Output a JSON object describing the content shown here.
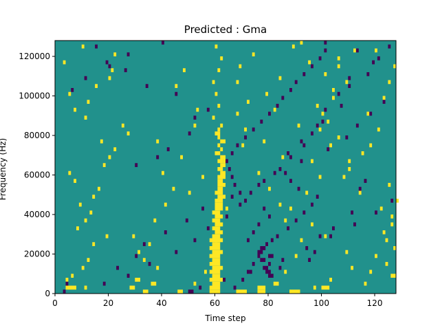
{
  "chart_data": {
    "type": "heatmap",
    "title": "Predicted : Gma",
    "xlabel": "Time step",
    "ylabel": "Frequency (Hz)",
    "xlim": [
      0,
      128
    ],
    "ylim": [
      0,
      128000
    ],
    "x_ticks": [
      0,
      20,
      40,
      60,
      80,
      100,
      120
    ],
    "y_ticks": [
      0,
      20000,
      40000,
      60000,
      80000,
      100000,
      120000
    ],
    "x_tick_labels": [
      "0",
      "20",
      "40",
      "60",
      "80",
      "100",
      "120"
    ],
    "y_tick_labels": [
      "0",
      "20000",
      "40000",
      "60000",
      "80000",
      "100000",
      "120000"
    ],
    "colormap": "viridis",
    "colors": {
      "background": "#21918c",
      "high": "#fde725",
      "low": "#440154"
    },
    "n_rows": 64,
    "n_cols": 128,
    "cells_high": [
      [
        1,
        4,
        8
      ],
      [
        3,
        4,
        5
      ],
      [
        4,
        6,
        7
      ],
      [
        6,
        10,
        11
      ],
      [
        8,
        12,
        13
      ],
      [
        12,
        14,
        15
      ],
      [
        14,
        19,
        20
      ],
      [
        16,
        8,
        9
      ],
      [
        18,
        11,
        12
      ],
      [
        20,
        13,
        14
      ],
      [
        22,
        9,
        10
      ],
      [
        24,
        14,
        15
      ],
      [
        26,
        16,
        17
      ],
      [
        28,
        7,
        8
      ],
      [
        30,
        5,
        6
      ],
      [
        32,
        18,
        19
      ],
      [
        34,
        20,
        21
      ],
      [
        36,
        22,
        23
      ],
      [
        38,
        17,
        18
      ],
      [
        40,
        27,
        28
      ],
      [
        42,
        25,
        26
      ],
      [
        44,
        11,
        12
      ],
      [
        46,
        7,
        8
      ],
      [
        48,
        12,
        13
      ],
      [
        50,
        5,
        6
      ],
      [
        52,
        15,
        16
      ],
      [
        54,
        20,
        21
      ],
      [
        56,
        21,
        22
      ],
      [
        58,
        3,
        4
      ],
      [
        60,
        22,
        23
      ],
      [
        62,
        10,
        11
      ],
      [
        1,
        28,
        30
      ],
      [
        3,
        30,
        32
      ],
      [
        2,
        36,
        38
      ],
      [
        6,
        38,
        39
      ],
      [
        8,
        33,
        34
      ],
      [
        10,
        31,
        32
      ],
      [
        12,
        35,
        36
      ],
      [
        14,
        29,
        30
      ],
      [
        18,
        37,
        38
      ],
      [
        22,
        41,
        42
      ],
      [
        26,
        44,
        45
      ],
      [
        30,
        40,
        41
      ],
      [
        34,
        47,
        48
      ],
      [
        38,
        38,
        39
      ],
      [
        42,
        52,
        53
      ],
      [
        46,
        53,
        54
      ],
      [
        52,
        45,
        46
      ],
      [
        56,
        48,
        49
      ],
      [
        2,
        52,
        53
      ],
      [
        5,
        56,
        57
      ],
      [
        9,
        58,
        59
      ],
      [
        13,
        60,
        61
      ],
      [
        17,
        62,
        63
      ],
      [
        21,
        64,
        65
      ],
      [
        25,
        50,
        51
      ],
      [
        29,
        55,
        56
      ],
      [
        33,
        63,
        64
      ],
      [
        37,
        70,
        71
      ],
      [
        41,
        71,
        72
      ],
      [
        45,
        68,
        69
      ],
      [
        48,
        72,
        73
      ],
      [
        53,
        68,
        69
      ],
      [
        57,
        69,
        70
      ],
      [
        60,
        74,
        75
      ],
      [
        0,
        68,
        72
      ],
      [
        0,
        76,
        79
      ],
      [
        2,
        82,
        84
      ],
      [
        5,
        86,
        87
      ],
      [
        9,
        90,
        91
      ],
      [
        13,
        92,
        93
      ],
      [
        17,
        96,
        97
      ],
      [
        21,
        88,
        89
      ],
      [
        25,
        94,
        95
      ],
      [
        29,
        99,
        100
      ],
      [
        33,
        96,
        97
      ],
      [
        37,
        103,
        104
      ],
      [
        41,
        99,
        100
      ],
      [
        45,
        100,
        101
      ],
      [
        49,
        104,
        105
      ],
      [
        53,
        109,
        110
      ],
      [
        57,
        106,
        107
      ],
      [
        61,
        112,
        113
      ],
      [
        2,
        116,
        117
      ],
      [
        5,
        118,
        119
      ],
      [
        9,
        120,
        121
      ],
      [
        13,
        124,
        125
      ],
      [
        17,
        126,
        127
      ],
      [
        21,
        122,
        123
      ],
      [
        25,
        114,
        115
      ],
      [
        29,
        108,
        109
      ],
      [
        33,
        110,
        111
      ],
      [
        37,
        118,
        119
      ],
      [
        41,
        121,
        122
      ],
      [
        45,
        117,
        118
      ],
      [
        49,
        123,
        124
      ],
      [
        53,
        125,
        126
      ],
      [
        57,
        127,
        128
      ],
      [
        61,
        120,
        121
      ],
      [
        1,
        97,
        98
      ],
      [
        3,
        103,
        104
      ],
      [
        6,
        111,
        112
      ],
      [
        10,
        109,
        110
      ],
      [
        14,
        101,
        102
      ],
      [
        18,
        86,
        87
      ],
      [
        22,
        84,
        85
      ],
      [
        26,
        80,
        81
      ],
      [
        30,
        76,
        77
      ],
      [
        34,
        85,
        86
      ],
      [
        38,
        78,
        79
      ],
      [
        42,
        91,
        92
      ],
      [
        46,
        82,
        83
      ],
      [
        50,
        79,
        80
      ],
      [
        54,
        84,
        85
      ],
      [
        58,
        95,
        96
      ],
      [
        62,
        89,
        90
      ],
      [
        4,
        126,
        128
      ],
      [
        7,
        124,
        125
      ],
      [
        11,
        127,
        128
      ],
      [
        15,
        123,
        124
      ],
      [
        19,
        126,
        127
      ],
      [
        23,
        128,
        128
      ],
      [
        27,
        125,
        126
      ],
      [
        31,
        110,
        111
      ],
      [
        35,
        115,
        116
      ],
      [
        39,
        106,
        107
      ],
      [
        43,
        102,
        103
      ],
      [
        47,
        98,
        99
      ],
      [
        51,
        104,
        105
      ],
      [
        55,
        101,
        102
      ],
      [
        59,
        106,
        107
      ],
      [
        63,
        92,
        93
      ],
      [
        0,
        58,
        62
      ],
      [
        1,
        58,
        62
      ],
      [
        2,
        59,
        62
      ],
      [
        3,
        58,
        63
      ],
      [
        4,
        59,
        62
      ],
      [
        5,
        58,
        62
      ],
      [
        6,
        59,
        63
      ],
      [
        7,
        58,
        62
      ],
      [
        8,
        59,
        62
      ],
      [
        9,
        58,
        62
      ],
      [
        10,
        59,
        63
      ],
      [
        11,
        58,
        62
      ],
      [
        12,
        59,
        62
      ],
      [
        13,
        58,
        63
      ],
      [
        14,
        59,
        62
      ],
      [
        15,
        60,
        63
      ],
      [
        16,
        59,
        62
      ],
      [
        17,
        60,
        63
      ],
      [
        18,
        59,
        62
      ],
      [
        19,
        60,
        63
      ],
      [
        20,
        59,
        62
      ],
      [
        21,
        60,
        63
      ],
      [
        22,
        60,
        63
      ],
      [
        23,
        60,
        63
      ],
      [
        24,
        61,
        64
      ],
      [
        25,
        60,
        63
      ],
      [
        26,
        61,
        63
      ],
      [
        27,
        61,
        64
      ],
      [
        28,
        61,
        63
      ],
      [
        29,
        61,
        64
      ],
      [
        30,
        62,
        64
      ],
      [
        31,
        61,
        63
      ],
      [
        32,
        62,
        64
      ],
      [
        33,
        61,
        63
      ],
      [
        34,
        62,
        64
      ],
      [
        35,
        60,
        62
      ],
      [
        36,
        62,
        63
      ],
      [
        37,
        61,
        62
      ],
      [
        38,
        62,
        64
      ],
      [
        39,
        61,
        62
      ],
      [
        40,
        60,
        62
      ],
      [
        41,
        61,
        62
      ],
      [
        42,
        62,
        63
      ],
      [
        44,
        59,
        60
      ],
      [
        47,
        61,
        62
      ],
      [
        50,
        60,
        61
      ],
      [
        53,
        59,
        60
      ],
      [
        56,
        61,
        62
      ],
      [
        59,
        62,
        63
      ],
      [
        62,
        60,
        61
      ],
      [
        0,
        88,
        92
      ],
      [
        1,
        76,
        79
      ],
      [
        0,
        33,
        35
      ],
      [
        1,
        11,
        12
      ],
      [
        0,
        46,
        48
      ],
      [
        1,
        100,
        103
      ]
    ],
    "cells_low": [
      [
        2,
        4,
        5
      ],
      [
        6,
        23,
        24
      ],
      [
        9,
        30,
        31
      ],
      [
        12,
        33,
        34
      ],
      [
        15,
        41,
        42
      ],
      [
        18,
        49,
        50
      ],
      [
        21,
        55,
        56
      ],
      [
        24,
        66,
        67
      ],
      [
        27,
        76,
        77
      ],
      [
        30,
        86,
        87
      ],
      [
        33,
        92,
        93
      ],
      [
        36,
        102,
        103
      ],
      [
        39,
        109,
        110
      ],
      [
        42,
        113,
        114
      ],
      [
        45,
        118,
        119
      ],
      [
        48,
        123,
        124
      ],
      [
        51,
        6,
        7
      ],
      [
        54,
        11,
        12
      ],
      [
        57,
        20,
        21
      ],
      [
        60,
        27,
        28
      ],
      [
        63,
        40,
        41
      ],
      [
        1,
        67,
        68
      ],
      [
        3,
        70,
        71
      ],
      [
        5,
        72,
        73
      ],
      [
        7,
        74,
        75
      ],
      [
        9,
        76,
        77
      ],
      [
        11,
        78,
        79
      ],
      [
        13,
        72,
        73
      ],
      [
        15,
        74,
        75
      ],
      [
        17,
        76,
        77
      ],
      [
        19,
        80,
        81
      ],
      [
        21,
        78,
        79
      ],
      [
        23,
        71,
        72
      ],
      [
        25,
        69,
        70
      ],
      [
        27,
        67,
        68
      ],
      [
        29,
        66,
        67
      ],
      [
        31,
        65,
        66
      ],
      [
        33,
        64,
        65
      ],
      [
        35,
        66,
        67
      ],
      [
        37,
        68,
        69
      ],
      [
        39,
        71,
        72
      ],
      [
        41,
        74,
        75
      ],
      [
        43,
        77,
        78
      ],
      [
        45,
        80,
        81
      ],
      [
        47,
        83,
        84
      ],
      [
        49,
        85,
        86
      ],
      [
        51,
        88,
        89
      ],
      [
        53,
        90,
        91
      ],
      [
        55,
        93,
        94
      ],
      [
        57,
        96,
        97
      ],
      [
        59,
        99,
        100
      ],
      [
        61,
        101,
        102
      ],
      [
        6,
        84,
        85
      ],
      [
        8,
        95,
        96
      ],
      [
        10,
        97,
        98
      ],
      [
        14,
        99,
        100
      ],
      [
        16,
        104,
        105
      ],
      [
        20,
        111,
        112
      ],
      [
        26,
        114,
        115
      ],
      [
        28,
        116,
        117
      ],
      [
        32,
        30,
        31
      ],
      [
        34,
        38,
        39
      ],
      [
        36,
        42,
        43
      ],
      [
        40,
        50,
        51
      ],
      [
        44,
        52,
        53
      ],
      [
        46,
        57,
        58
      ],
      [
        50,
        45,
        46
      ],
      [
        52,
        34,
        35
      ],
      [
        56,
        26,
        27
      ],
      [
        58,
        19,
        20
      ],
      [
        62,
        15,
        16
      ],
      [
        4,
        80,
        82
      ],
      [
        5,
        79,
        81
      ],
      [
        6,
        78,
        80
      ],
      [
        7,
        80,
        81
      ],
      [
        8,
        77,
        79
      ],
      [
        9,
        80,
        82
      ],
      [
        10,
        76,
        78
      ],
      [
        11,
        77,
        79
      ],
      [
        12,
        79,
        80
      ],
      [
        13,
        81,
        82
      ],
      [
        14,
        83,
        84
      ],
      [
        16,
        87,
        88
      ],
      [
        18,
        90,
        91
      ],
      [
        20,
        93,
        94
      ],
      [
        22,
        96,
        97
      ],
      [
        24,
        98,
        99
      ],
      [
        26,
        91,
        92
      ],
      [
        28,
        88,
        89
      ],
      [
        30,
        82,
        83
      ],
      [
        35,
        87,
        88
      ],
      [
        38,
        92,
        93
      ],
      [
        42,
        98,
        99
      ],
      [
        46,
        101,
        102
      ],
      [
        50,
        106,
        107
      ],
      [
        54,
        110,
        111
      ],
      [
        58,
        119,
        120
      ],
      [
        61,
        113,
        114
      ],
      [
        63,
        101,
        102
      ],
      [
        0,
        3,
        4
      ],
      [
        2,
        18,
        19
      ],
      [
        4,
        27,
        28
      ],
      [
        7,
        35,
        36
      ],
      [
        10,
        45,
        46
      ],
      [
        13,
        52,
        53
      ],
      [
        16,
        57,
        58
      ],
      [
        19,
        64,
        65
      ],
      [
        22,
        69,
        70
      ],
      [
        25,
        73,
        74
      ],
      [
        28,
        78,
        79
      ],
      [
        31,
        84,
        85
      ],
      [
        34,
        88,
        89
      ],
      [
        37,
        93,
        94
      ],
      [
        40,
        96,
        97
      ],
      [
        43,
        100,
        101
      ],
      [
        47,
        107,
        108
      ],
      [
        52,
        110,
        111
      ],
      [
        55,
        117,
        118
      ],
      [
        59,
        121,
        122
      ],
      [
        62,
        125,
        126
      ],
      [
        0,
        50,
        52
      ],
      [
        1,
        54,
        55
      ],
      [
        3,
        63,
        64
      ],
      [
        5,
        73,
        74
      ],
      [
        8,
        85,
        86
      ],
      [
        11,
        94,
        95
      ],
      [
        14,
        103,
        104
      ],
      [
        17,
        112,
        113
      ],
      [
        20,
        120,
        121
      ],
      [
        23,
        126,
        127
      ]
    ]
  }
}
